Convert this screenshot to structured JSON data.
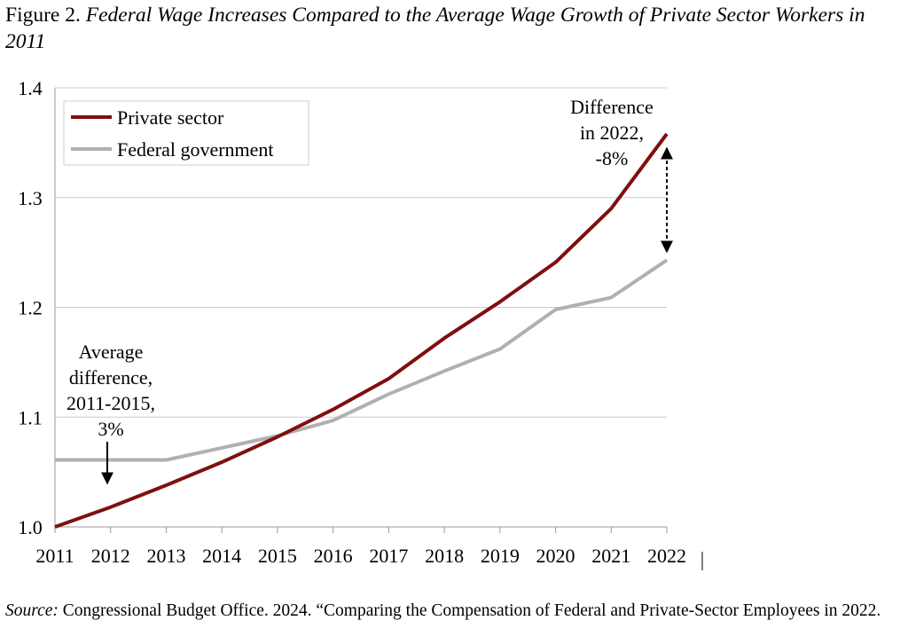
{
  "figure": {
    "number_label": "Figure 2.",
    "title": "Federal Wage Increases Compared to the Average Wage Growth of Private Sector Workers in 2011"
  },
  "chart_data": {
    "type": "line",
    "title": "Federal Wage Increases Compared to the Average Wage Growth of Private Sector Workers in 2011",
    "xlabel": "",
    "ylabel": "",
    "x": [
      "2011",
      "2012",
      "2013",
      "2014",
      "2015",
      "2016",
      "2017",
      "2018",
      "2019",
      "2020",
      "2021",
      "2022"
    ],
    "ylim": [
      1.0,
      1.4
    ],
    "yticks": [
      "1.0",
      "1.1",
      "1.2",
      "1.3",
      "1.4"
    ],
    "grid": true,
    "legend_position": "top-left",
    "series": [
      {
        "name": "Private sector",
        "color": "#7f0f0f",
        "values": [
          1.0,
          1.018,
          1.038,
          1.059,
          1.082,
          1.107,
          1.135,
          1.172,
          1.205,
          1.241,
          1.29,
          1.358
        ]
      },
      {
        "name": "Federal government",
        "color": "#b0b0b0",
        "values": [
          1.061,
          1.061,
          1.061,
          1.072,
          1.083,
          1.097,
          1.121,
          1.142,
          1.162,
          1.198,
          1.209,
          1.243
        ]
      }
    ],
    "annotations": {
      "average": [
        "Average",
        "difference,",
        "2011-2015,",
        "3%"
      ],
      "difference_2022": [
        "Difference",
        "in 2022,",
        "-8%"
      ]
    }
  },
  "source": {
    "label": "Source:",
    "text": " Congressional Budget Office. 2024. “Comparing the Compensation of Federal and Private-Sector Employees in 2022."
  }
}
